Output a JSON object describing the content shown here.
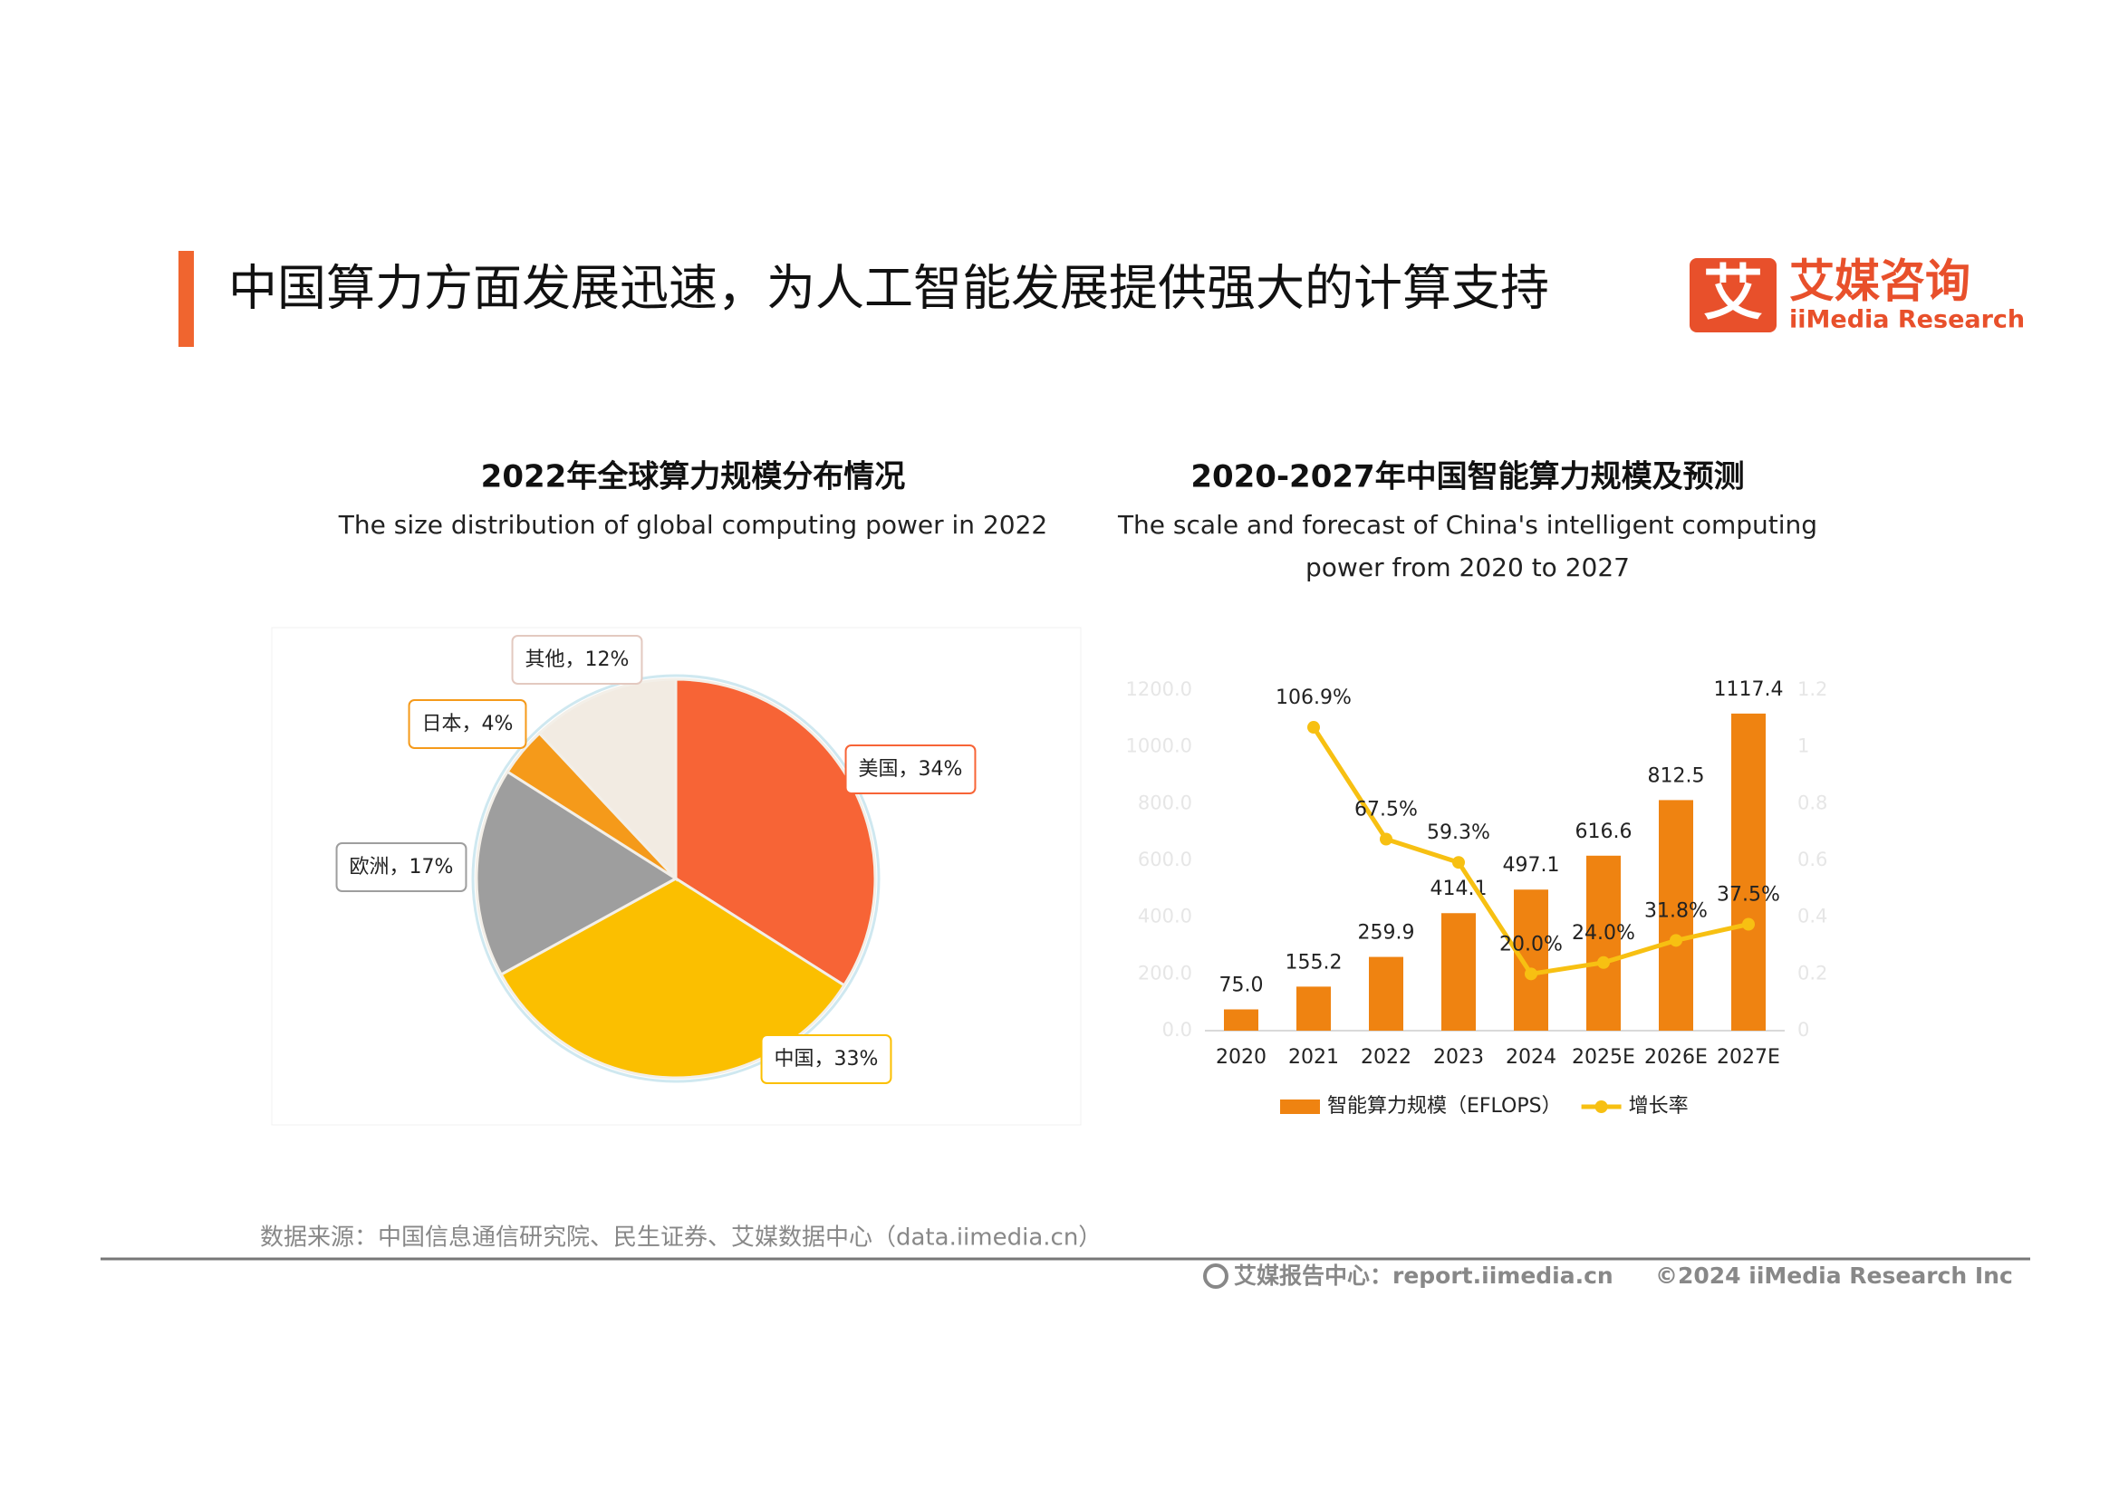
{
  "header": {
    "title": "中国算力方面发展迅速，为人工智能发展提供强大的计算支持"
  },
  "logo": {
    "mark": "艾",
    "name": "艾媒咨询",
    "name_en": "iiMedia Research"
  },
  "chart_data": [
    {
      "type": "pie",
      "title": "2022年全球算力规模分布情况",
      "subtitle": "The size distribution of global computing power in 2022",
      "values": [
        34,
        33,
        17,
        4,
        12
      ],
      "value_labels": [
        "美国，34%",
        "中国，33%",
        "欧洲，17%",
        "日本，4%",
        "其他，12%"
      ],
      "colors": [
        "#f76436",
        "#fbbf00",
        "#9e9e9e",
        "#f59a1a",
        "#f2ebe2"
      ]
    },
    {
      "type": "bar-line",
      "title": "2020-2027年中国智能算力规模及预测",
      "subtitle": "The scale and forecast of China's intelligent computing power from 2020 to 2027",
      "categories": [
        "2020",
        "2021",
        "2022",
        "2023",
        "2024",
        "2025E",
        "2026E",
        "2027E"
      ],
      "series": [
        {
          "name": "智能算力规模（EFLOPS）",
          "type": "bar",
          "color": "#ef8311",
          "values": [
            75.0,
            155.2,
            259.9,
            414.1,
            497.1,
            616.6,
            812.5,
            1117.4
          ],
          "value_labels": [
            "75.0",
            "155.2",
            "259.9",
            "414.1",
            "497.1",
            "616.6",
            "812.5",
            "1117.4"
          ]
        },
        {
          "name": "增长率",
          "type": "line",
          "axis": "y2",
          "color": "#f7c012",
          "values": [
            null,
            1.069,
            0.675,
            0.593,
            0.2,
            0.24,
            0.318,
            0.375
          ],
          "value_labels": [
            null,
            "106.9%",
            "67.5%",
            "59.3%",
            "20.0%",
            "24.0%",
            "31.8%",
            "37.5%"
          ]
        }
      ],
      "ylim": [
        0,
        1200
      ],
      "yticks": [
        {
          "value": 0,
          "label": "0.0"
        },
        {
          "value": 200,
          "label": "200.0"
        },
        {
          "value": 400,
          "label": "400.0"
        },
        {
          "value": 600,
          "label": "600.0"
        },
        {
          "value": 800,
          "label": "800.0"
        },
        {
          "value": 1000,
          "label": "1000.0"
        },
        {
          "value": 1200,
          "label": "1200.0"
        }
      ],
      "y2lim": [
        0,
        1.2
      ],
      "y2ticks": [
        0,
        0.2,
        0.4,
        0.6,
        0.8,
        1,
        1.2
      ]
    }
  ],
  "source": "数据来源：中国信息通信研究院、民生证券、艾媒数据中心（data.iimedia.cn）",
  "footer": {
    "report": "艾媒报告中心：report.iimedia.cn",
    "copyright": "©2024 iiMedia Research Inc"
  }
}
